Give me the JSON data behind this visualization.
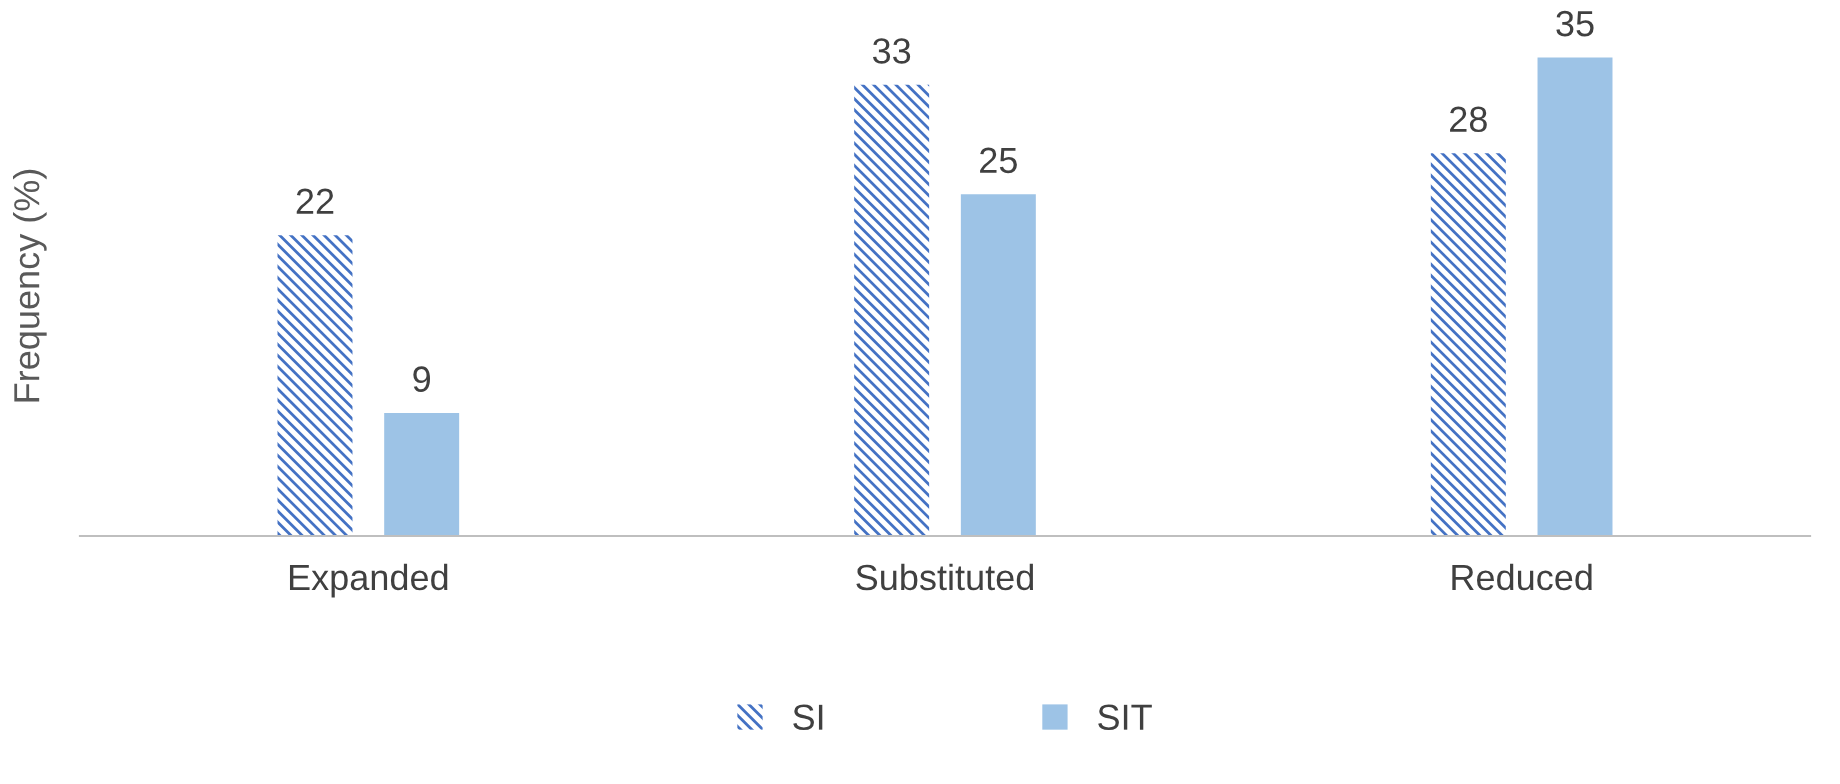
{
  "chart_data": {
    "type": "bar",
    "ylabel": "Frequency (%)",
    "categories": [
      "Expanded",
      "Substituted",
      "Reduced"
    ],
    "series": [
      {
        "name": "SI",
        "color": "#4472c4",
        "values": [
          22,
          33,
          28
        ]
      },
      {
        "name": "SIT",
        "color": "#9dc3e6",
        "values": [
          9,
          25,
          35
        ]
      }
    ],
    "data_labels": true,
    "legend": "bottom",
    "grid": false
  }
}
